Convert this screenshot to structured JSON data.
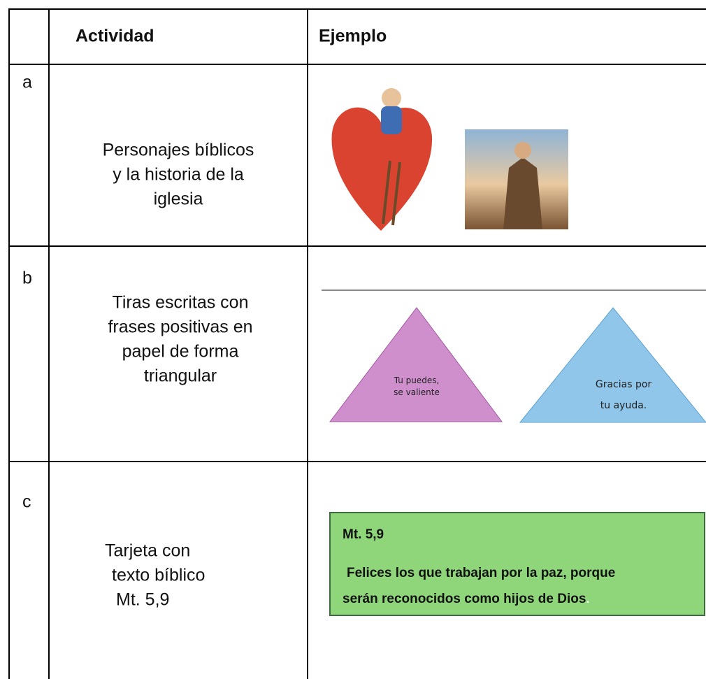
{
  "table": {
    "header": [
      "Actividad",
      "Ejemplo"
    ],
    "rows": [
      {
        "label": "a",
        "activity": [
          "Personajes bíblicos",
          "y la historia de la",
          "iglesia"
        ]
      },
      {
        "label": "b",
        "activity": [
          "Tiras escritas con",
          "frases positivas en",
          "papel de forma",
          "triangular"
        ]
      },
      {
        "label": "c",
        "activity": [
          "Tarjeta con",
          "texto bíblico",
          "Mt. 5,9"
        ]
      }
    ]
  },
  "examples": {
    "triangles": [
      [
        "Tu puedes,",
        "se valiente"
      ],
      [
        "Gracias por",
        "tu ayuda."
      ]
    ],
    "card": {
      "reference": "Mt. 5,9",
      "text": [
        "Felices los que trabajan por la paz, porque",
        "serán reconocidos como hijos de Dios"
      ],
      "trailing": "."
    }
  }
}
